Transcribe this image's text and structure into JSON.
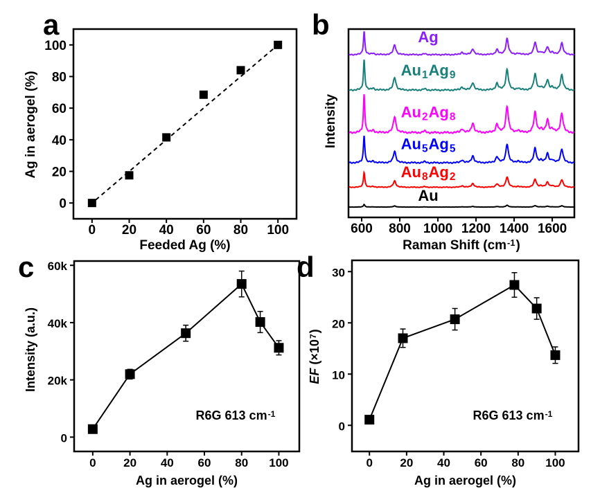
{
  "panel_labels": [
    "a",
    "b",
    "c",
    "d"
  ],
  "chart_data": [
    {
      "panel": "a",
      "type": "scatter",
      "xlabel": "Feeded Ag (%)",
      "ylabel": "Ag in aerogel (%)",
      "xlim": [
        -10,
        110
      ],
      "ylim": [
        -10,
        110
      ],
      "xticks": [
        0,
        20,
        40,
        60,
        80,
        100
      ],
      "yticks": [
        0,
        20,
        40,
        60,
        80,
        100
      ],
      "x": [
        0,
        20,
        40,
        60,
        80,
        100
      ],
      "y": [
        0,
        17.5,
        41.5,
        68.5,
        84,
        100
      ],
      "fit_line": {
        "style": "dashed",
        "x": [
          2,
          100
        ],
        "y": [
          2,
          100
        ]
      },
      "grid": false
    },
    {
      "panel": "b",
      "type": "line",
      "xlabel_parts": [
        {
          "t": "Raman Shift (cm"
        },
        {
          "t": "-1",
          "sup": true
        },
        {
          "t": ")"
        }
      ],
      "ylabel": "Intensity",
      "xlim": [
        531,
        1716
      ],
      "ylim": [
        0,
        100
      ],
      "xticks": [
        600,
        800,
        1000,
        1200,
        1400,
        1600
      ],
      "peaks_cm1": [
        613,
        660,
        773,
        930,
        1127,
        1183,
        1310,
        1363,
        1420,
        1510,
        1540,
        1575,
        1600,
        1650
      ],
      "relative_peak_intensity": [
        1.0,
        0.06,
        0.42,
        0.04,
        0.1,
        0.25,
        0.22,
        0.68,
        0.06,
        0.52,
        0.08,
        0.33,
        0.08,
        0.5
      ],
      "series": [
        {
          "name_parts": [
            {
              "t": "Ag"
            }
          ],
          "color": "#8b1dff",
          "offset": 86.4,
          "peak_613": 12.5
        },
        {
          "name_parts": [
            {
              "t": "Au"
            },
            {
              "t": "1",
              "sub": true
            },
            {
              "t": "Ag"
            },
            {
              "t": "9",
              "sub": true
            }
          ],
          "color": "#17807a",
          "offset": 67.6,
          "peak_613": 16.2
        },
        {
          "name_parts": [
            {
              "t": "Au"
            },
            {
              "t": "2",
              "sub": true
            },
            {
              "t": "Ag"
            },
            {
              "t": "8",
              "sub": true
            }
          ],
          "color": "#ff00ff",
          "offset": 45,
          "peak_613": 20.6
        },
        {
          "name_parts": [
            {
              "t": "Au"
            },
            {
              "t": "5",
              "sub": true
            },
            {
              "t": "Ag"
            },
            {
              "t": "5",
              "sub": true
            }
          ],
          "color": "#0000ff",
          "offset": 29,
          "peak_613": 14.7
        },
        {
          "name_parts": [
            {
              "t": "Au"
            },
            {
              "t": "8",
              "sub": true
            },
            {
              "t": "Ag"
            },
            {
              "t": "2",
              "sub": true
            }
          ],
          "color": "#ff0000",
          "offset": 16,
          "peak_613": 8.1
        },
        {
          "name_parts": [
            {
              "t": "Au"
            }
          ],
          "color": "#000000",
          "offset": 5.5,
          "peak_613": 1.4
        }
      ],
      "grid": false
    },
    {
      "panel": "c",
      "type": "line",
      "xlabel": "Ag in aerogel (%)",
      "ylabel": "Intensity (a.u.)",
      "xlim": [
        -10,
        111
      ],
      "ylim": [
        -5000,
        61500
      ],
      "xticks": [
        0,
        20,
        40,
        60,
        80,
        100
      ],
      "yticks": [
        0,
        20000,
        40000,
        60000
      ],
      "ytick_labels": [
        "0",
        "20k",
        "40k",
        "60k"
      ],
      "x": [
        0,
        20,
        50,
        80,
        90,
        100
      ],
      "y": [
        2800,
        22000,
        36300,
        53500,
        40200,
        31200
      ],
      "yerr": [
        1000,
        1700,
        2800,
        4500,
        3700,
        2500
      ],
      "annotation_parts": [
        {
          "t": "R6G 613 cm"
        },
        {
          "t": "-1",
          "sup": true
        }
      ],
      "grid": false
    },
    {
      "panel": "d",
      "type": "line",
      "xlabel": "Ag in aerogel (%)",
      "ylabel_parts": [
        {
          "t": "EF",
          "it": true
        },
        {
          "t": " (×10"
        },
        {
          "t": "7",
          "sup": true
        },
        {
          "t": ")"
        }
      ],
      "xlim": [
        -9.4,
        112.5
      ],
      "ylim": [
        -5.1,
        32.2
      ],
      "xticks": [
        0,
        20,
        40,
        60,
        80,
        100
      ],
      "yticks": [
        0,
        10,
        20,
        30
      ],
      "x": [
        0,
        18,
        46,
        78,
        90,
        100
      ],
      "y": [
        1.1,
        17,
        20.7,
        27.4,
        22.8,
        13.7
      ],
      "yerr": [
        0.5,
        1.8,
        2.1,
        2.4,
        2.1,
        1.6
      ],
      "annotation_parts": [
        {
          "t": "R6G 613 cm"
        },
        {
          "t": "-1",
          "sup": true
        }
      ],
      "grid": false
    }
  ]
}
